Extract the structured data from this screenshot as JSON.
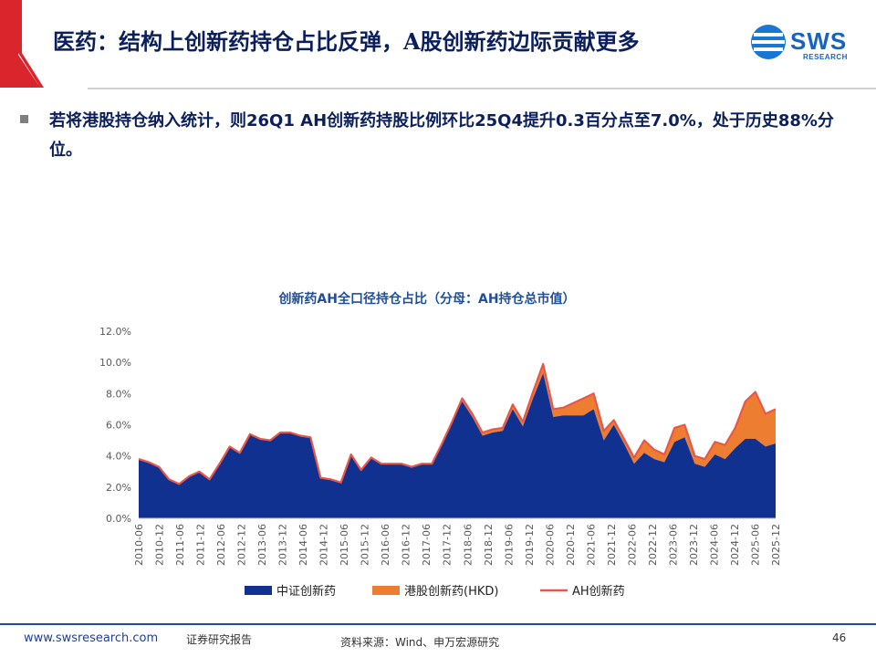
{
  "header": {
    "title": "医药：结构上创新药持仓占比反弹，A股创新药边际贡献更多",
    "logo_text": "SWS",
    "logo_sub": "RESEARCH",
    "accent_color": "#d9252b"
  },
  "summary": {
    "text": "若将港股持仓纳入统计，则26Q1  AH创新药持股比例环比25Q4提升0.3百分点至7.0%，处于历史88%分位。"
  },
  "chart_data": {
    "type": "area",
    "title": "创新药AH全口径持仓占比（分母：AH持仓总市值）",
    "ylim": [
      0,
      12
    ],
    "yticks": [
      "0.0%",
      "2.0%",
      "4.0%",
      "6.0%",
      "8.0%",
      "10.0%",
      "12.0%"
    ],
    "xticks": [
      "2010-06",
      "2010-12",
      "2011-06",
      "2011-12",
      "2012-06",
      "2012-12",
      "2013-06",
      "2013-12",
      "2014-06",
      "2014-12",
      "2015-06",
      "2015-12",
      "2016-06",
      "2016-12",
      "2017-06",
      "2017-12",
      "2018-06",
      "2018-12",
      "2019-06",
      "2019-12",
      "2020-06",
      "2020-12",
      "2021-06",
      "2021-12",
      "2022-06",
      "2022-12",
      "2023-06",
      "2023-12",
      "2024-06",
      "2024-12",
      "2025-06",
      "2025-12"
    ],
    "series": [
      {
        "name": "中证创新药",
        "color": "#10318f",
        "values": [
          3.8,
          3.6,
          3.3,
          2.5,
          2.2,
          2.7,
          3.0,
          2.5,
          3.5,
          4.6,
          4.2,
          5.4,
          5.1,
          5.0,
          5.5,
          5.5,
          5.3,
          5.2,
          2.6,
          2.5,
          2.3,
          4.1,
          3.1,
          3.9,
          3.5,
          3.5,
          3.5,
          3.3,
          3.5,
          3.5,
          4.8,
          6.2,
          7.5,
          6.5,
          5.3,
          5.5,
          5.6,
          7.0,
          5.9,
          7.7,
          9.3,
          6.5,
          6.6,
          6.6,
          6.6,
          7.0,
          5.0,
          6.0,
          4.8,
          3.5,
          4.2,
          3.8,
          3.6,
          4.9,
          5.2,
          3.5,
          3.3,
          4.1,
          3.8,
          4.5,
          5.1,
          5.1,
          4.6,
          4.8
        ]
      },
      {
        "name": "港股创新药(HKD)",
        "color": "#ed7d31",
        "values": [
          0,
          0,
          0,
          0,
          0,
          0,
          0,
          0,
          0,
          0,
          0,
          0,
          0,
          0,
          0,
          0,
          0,
          0,
          0,
          0,
          0,
          0,
          0,
          0,
          0,
          0,
          0,
          0,
          0,
          0,
          0,
          0,
          0.2,
          0.2,
          0.2,
          0.2,
          0.2,
          0.3,
          0.3,
          0.4,
          0.6,
          0.5,
          0.5,
          0.8,
          1.1,
          1.0,
          0.6,
          0.3,
          0.3,
          0.4,
          0.8,
          0.6,
          0.5,
          0.9,
          0.8,
          0.5,
          0.5,
          0.8,
          0.9,
          1.3,
          2.4,
          3.0,
          2.1,
          2.2
        ]
      },
      {
        "name": "AH创新药",
        "color": "#e8584a",
        "values": [
          3.8,
          3.6,
          3.3,
          2.5,
          2.2,
          2.7,
          3.0,
          2.5,
          3.5,
          4.6,
          4.2,
          5.4,
          5.1,
          5.0,
          5.5,
          5.5,
          5.3,
          5.2,
          2.6,
          2.5,
          2.3,
          4.1,
          3.1,
          3.9,
          3.5,
          3.5,
          3.5,
          3.3,
          3.5,
          3.5,
          4.8,
          6.2,
          7.7,
          6.7,
          5.5,
          5.7,
          5.8,
          7.3,
          6.2,
          8.1,
          9.9,
          7.0,
          7.1,
          7.4,
          7.7,
          8.0,
          5.6,
          6.3,
          5.1,
          3.9,
          5.0,
          4.4,
          4.1,
          5.8,
          6.0,
          4.0,
          3.8,
          4.9,
          4.7,
          5.8,
          7.5,
          8.1,
          6.7,
          7.0
        ]
      }
    ],
    "legend": [
      "中证创新药",
      "港股创新药(HKD)",
      "AH创新药"
    ],
    "legend_position": "bottom"
  },
  "footer": {
    "site": "www.swsresearch.com",
    "doc_type": "证券研究报告",
    "source": "资料来源：Wind、申万宏源研究",
    "page": "46"
  }
}
